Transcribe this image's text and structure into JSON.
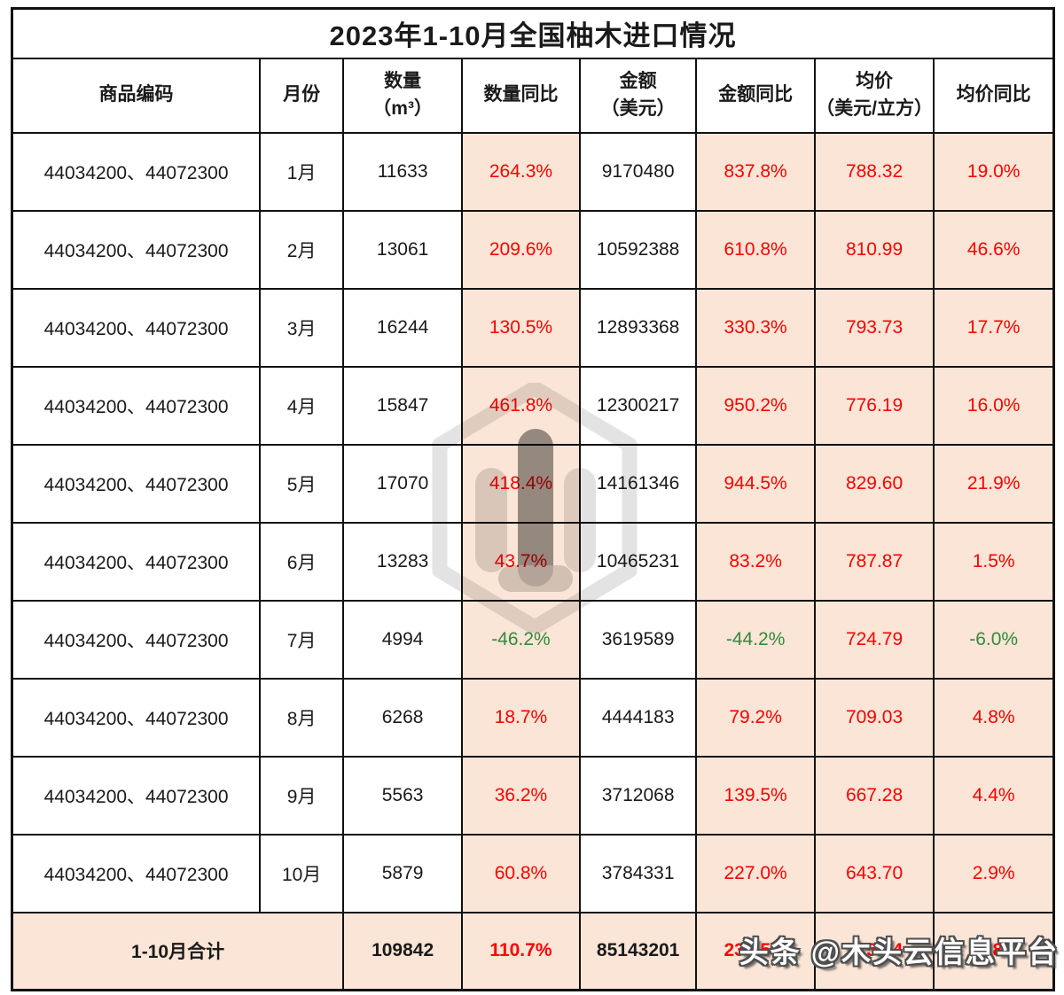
{
  "title": "2023年1-10月全国柚木进口情况",
  "watermark": {
    "text": "头条 @木头云信息平台",
    "logo": "mutouyun-hexagon-logo"
  },
  "colors": {
    "highlight_cell_bg": "#fbe5d6",
    "positive_text": "#fe0000",
    "negative_text": "#338a3c",
    "normal_text": "#1a1a1a",
    "border": "#111111"
  },
  "table": {
    "columns": [
      {
        "key": "code",
        "label": "商品编码",
        "sub": ""
      },
      {
        "key": "month",
        "label": "月份",
        "sub": ""
      },
      {
        "key": "qty",
        "label": "数量",
        "sub": "（m³）"
      },
      {
        "key": "qty_yoy",
        "label": "数量同比",
        "sub": ""
      },
      {
        "key": "amount",
        "label": "金额",
        "sub": "（美元）"
      },
      {
        "key": "amount_yoy",
        "label": "金额同比",
        "sub": ""
      },
      {
        "key": "price",
        "label": "均价",
        "sub": "（美元/立方）"
      },
      {
        "key": "price_yoy",
        "label": "均价同比",
        "sub": ""
      }
    ],
    "highlight_columns": [
      "qty_yoy",
      "amount_yoy",
      "price",
      "price_yoy"
    ],
    "rows": [
      {
        "code": "44034200、44072300",
        "month": "1月",
        "qty": "11633",
        "qty_yoy": "264.3%",
        "amount": "9170480",
        "amount_yoy": "837.8%",
        "price": "788.32",
        "price_yoy": "19.0%"
      },
      {
        "code": "44034200、44072300",
        "month": "2月",
        "qty": "13061",
        "qty_yoy": "209.6%",
        "amount": "10592388",
        "amount_yoy": "610.8%",
        "price": "810.99",
        "price_yoy": "46.6%"
      },
      {
        "code": "44034200、44072300",
        "month": "3月",
        "qty": "16244",
        "qty_yoy": "130.5%",
        "amount": "12893368",
        "amount_yoy": "330.3%",
        "price": "793.73",
        "price_yoy": "17.7%"
      },
      {
        "code": "44034200、44072300",
        "month": "4月",
        "qty": "15847",
        "qty_yoy": "461.8%",
        "amount": "12300217",
        "amount_yoy": "950.2%",
        "price": "776.19",
        "price_yoy": "16.0%"
      },
      {
        "code": "44034200、44072300",
        "month": "5月",
        "qty": "17070",
        "qty_yoy": "418.4%",
        "amount": "14161346",
        "amount_yoy": "944.5%",
        "price": "829.60",
        "price_yoy": "21.9%"
      },
      {
        "code": "44034200、44072300",
        "month": "6月",
        "qty": "13283",
        "qty_yoy": "43.7%",
        "amount": "10465231",
        "amount_yoy": "83.2%",
        "price": "787.87",
        "price_yoy": "1.5%"
      },
      {
        "code": "44034200、44072300",
        "month": "7月",
        "qty": "4994",
        "qty_yoy": "-46.2%",
        "amount": "3619589",
        "amount_yoy": "-44.2%",
        "price": "724.79",
        "price_yoy": "-6.0%"
      },
      {
        "code": "44034200、44072300",
        "month": "8月",
        "qty": "6268",
        "qty_yoy": "18.7%",
        "amount": "4444183",
        "amount_yoy": "79.2%",
        "price": "709.03",
        "price_yoy": "4.8%"
      },
      {
        "code": "44034200、44072300",
        "month": "9月",
        "qty": "5563",
        "qty_yoy": "36.2%",
        "amount": "3712068",
        "amount_yoy": "139.5%",
        "price": "667.28",
        "price_yoy": "4.4%"
      },
      {
        "code": "44034200、44072300",
        "month": "10月",
        "qty": "5879",
        "qty_yoy": "60.8%",
        "amount": "3784331",
        "amount_yoy": "227.0%",
        "price": "643.70",
        "price_yoy": "2.9%"
      }
    ],
    "total": {
      "label": "1-10月合计",
      "qty": "109842",
      "qty_yoy": "110.7%",
      "amount": "85143201",
      "amount_yoy": "235.5%",
      "price": "775.14",
      "price_yoy": "11.8%"
    }
  }
}
